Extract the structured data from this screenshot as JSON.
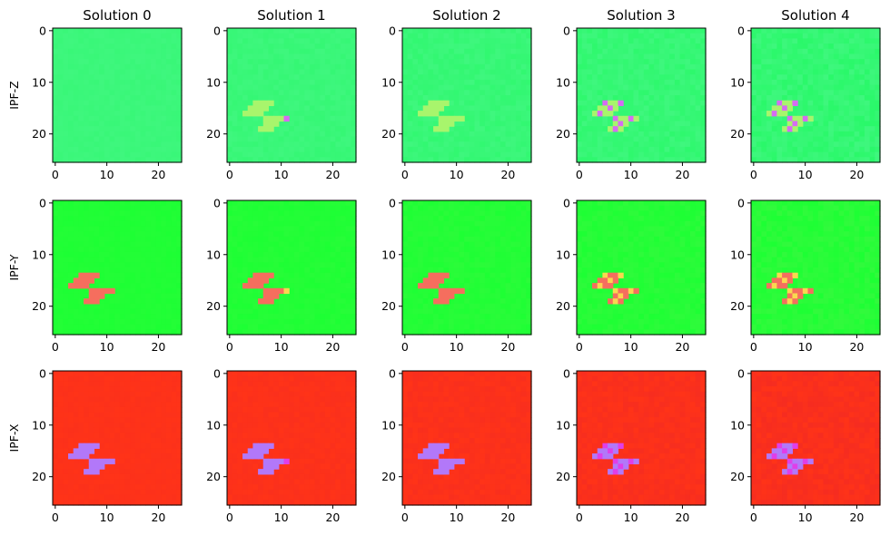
{
  "chart_data": {
    "type": "heatmap",
    "grid": false,
    "columns": [
      "Solution 0",
      "Solution 1",
      "Solution 2",
      "Solution 3",
      "Solution 4"
    ],
    "rows": [
      "IPF-Z",
      "IPF-Y",
      "IPF-X"
    ],
    "x_ticks": [
      "0",
      "10",
      "20"
    ],
    "y_ticks": [
      "0",
      "10",
      "20"
    ],
    "xlim": [
      -0.5,
      24.5
    ],
    "ylim": [
      25.5,
      -0.5
    ],
    "grid_size": [
      26,
      25
    ],
    "colors": {
      "IPF-Z": {
        "base": "#3ff77e",
        "alt": "#26f866",
        "feature": "#a8f56c",
        "accent": "#d66cf2"
      },
      "IPF-Y": {
        "base": "#1dff34",
        "alt": "#36f93e",
        "feature": "#f56e5e",
        "accent": "#f9d84f"
      },
      "IPF-X": {
        "base": "#ff3318",
        "alt": "#f42b22",
        "feature": "#b278f9",
        "accent": "#e03ee8"
      }
    }
  }
}
